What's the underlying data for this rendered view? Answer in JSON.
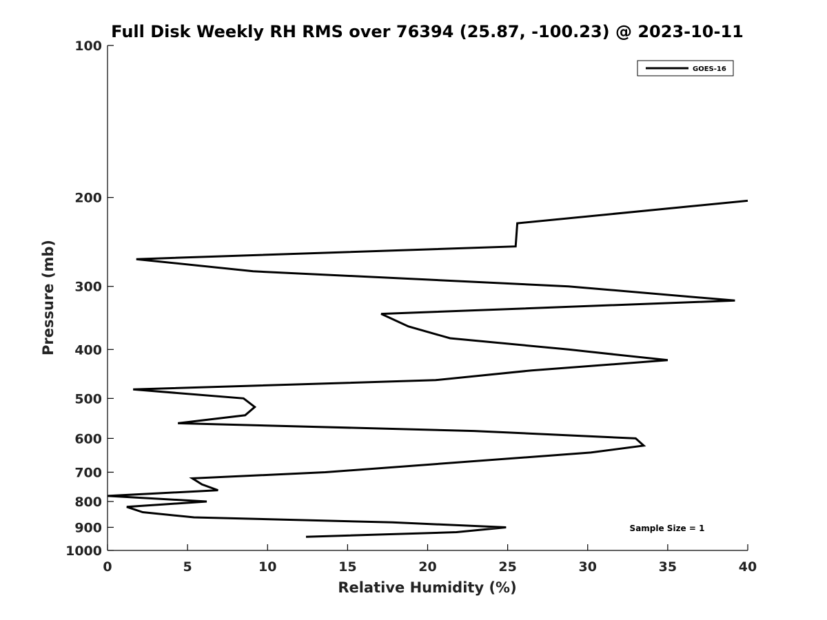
{
  "chart_data": {
    "type": "line",
    "title": "Full Disk Weekly RH RMS over 76394 (25.87, -100.23) @ 2023-10-11",
    "xlabel": "Relative Humidity (%)",
    "ylabel": "Pressure (mb)",
    "xlim": [
      0,
      40
    ],
    "ylim": [
      100,
      1000
    ],
    "y_scale": "log",
    "y_inverted": true,
    "x_ticks": [
      0,
      5,
      10,
      15,
      20,
      25,
      30,
      35,
      40
    ],
    "y_ticks": [
      100,
      200,
      300,
      400,
      500,
      600,
      700,
      800,
      900,
      1000
    ],
    "grid": false,
    "legend_position": "top-right",
    "line_color": "#000000",
    "series": [
      {
        "name": "GOES-16",
        "points": [
          [
            40.0,
            203
          ],
          [
            25.6,
            225
          ],
          [
            25.5,
            250
          ],
          [
            1.8,
            265
          ],
          [
            9.1,
            280
          ],
          [
            28.8,
            300
          ],
          [
            39.2,
            320
          ],
          [
            17.1,
            340
          ],
          [
            18.8,
            360
          ],
          [
            21.4,
            380
          ],
          [
            28.8,
            400
          ],
          [
            35.0,
            420
          ],
          [
            26.5,
            440
          ],
          [
            20.5,
            460
          ],
          [
            1.6,
            480
          ],
          [
            8.5,
            500
          ],
          [
            9.2,
            520
          ],
          [
            8.6,
            540
          ],
          [
            4.4,
            560
          ],
          [
            22.9,
            580
          ],
          [
            33.0,
            600
          ],
          [
            33.5,
            620
          ],
          [
            30.2,
            640
          ],
          [
            13.6,
            700
          ],
          [
            5.3,
            720
          ],
          [
            5.9,
            740
          ],
          [
            6.9,
            760
          ],
          [
            0.0,
            780
          ],
          [
            6.2,
            800
          ],
          [
            1.2,
            820
          ],
          [
            2.2,
            840
          ],
          [
            5.4,
            860
          ],
          [
            17.8,
            880
          ],
          [
            24.9,
            900
          ],
          [
            21.8,
            920
          ],
          [
            12.4,
            940
          ]
        ]
      }
    ],
    "annotation": "Sample Size = 1"
  }
}
